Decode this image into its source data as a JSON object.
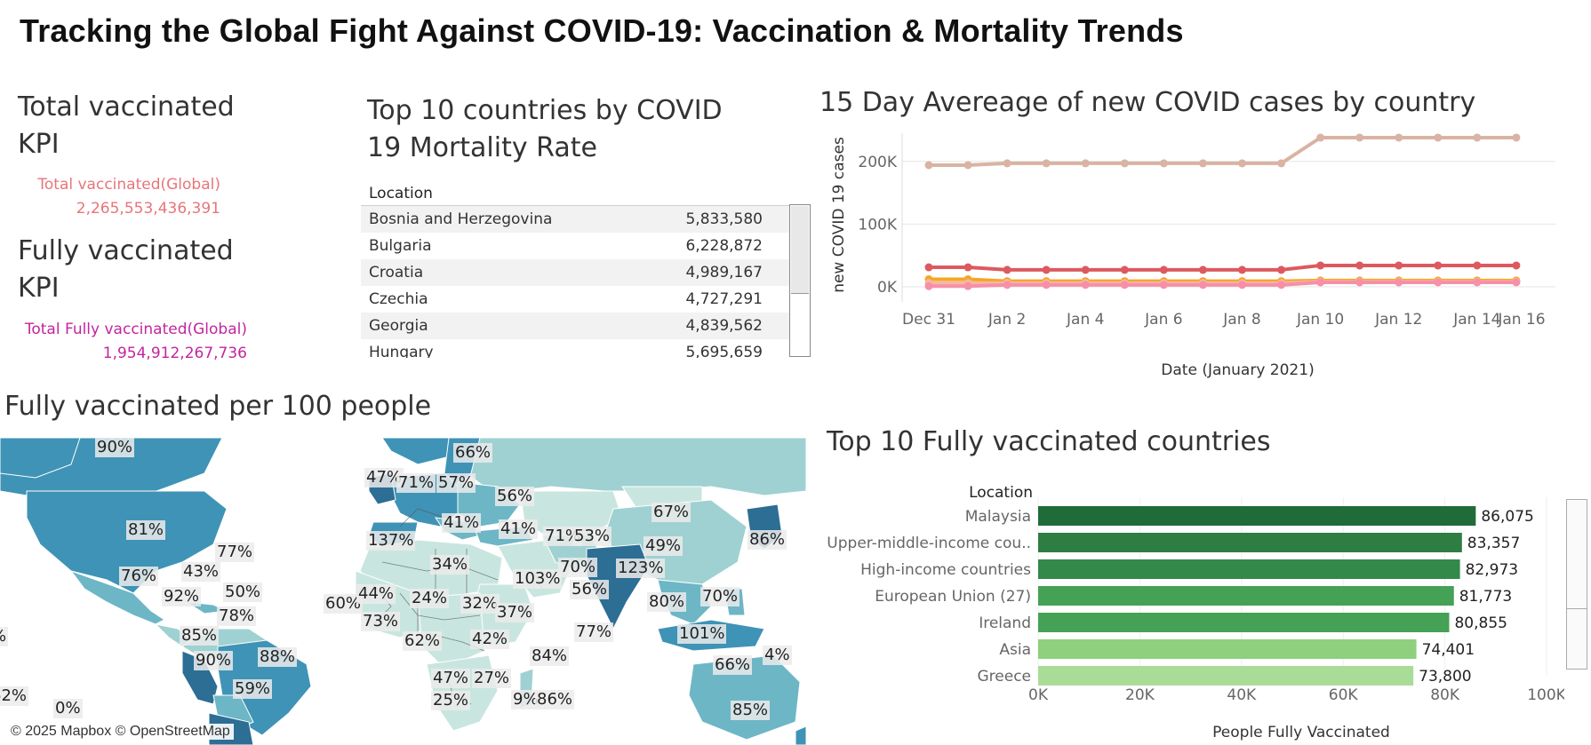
{
  "dashboard": {
    "title": "Tracking the Global Fight Against COVID-19: Vaccination & Mortality Trends"
  },
  "kpi": {
    "total_title": "Total vaccinated KPI",
    "total_label": "Total vaccinated(Global)",
    "total_value": "2,265,553,436,391",
    "total_color": "#e8757a",
    "fully_title": "Fully vaccinated KPI",
    "fully_label": "Total Fully vaccinated(Global)",
    "fully_value": "1,954,912,267,736",
    "fully_color": "#c3259e"
  },
  "mortality_table": {
    "title": "Top 10 countries by COVID 19 Mortality Rate",
    "column_header": "Location",
    "rows": [
      {
        "location": "Bosnia and Herzegovina",
        "value": "5,833,580"
      },
      {
        "location": "Bulgaria",
        "value": "6,228,872"
      },
      {
        "location": "Croatia",
        "value": "4,989,167"
      },
      {
        "location": "Czechia",
        "value": "4,727,291"
      },
      {
        "location": "Georgia",
        "value": "4,839,562"
      },
      {
        "location": "Hungary",
        "value": "5,695,659"
      }
    ]
  },
  "map": {
    "title": "Fully vaccinated per 100 people",
    "attribution": "© 2025 Mapbox © OpenStreetMap",
    "labels": [
      "90%",
      "81%",
      "77%",
      "76%",
      "43%",
      "50%",
      "92%",
      "78%",
      "85%",
      "88%",
      "90%",
      "59%",
      "62%",
      "0%",
      "%",
      "60%",
      "47%",
      "71%",
      "57%",
      "66%",
      "56%",
      "41%",
      "137%",
      "34%",
      "44%",
      "24%",
      "73%",
      "62%",
      "32%",
      "37%",
      "42%",
      "47%",
      "27%",
      "25%",
      "9%",
      "86%",
      "84%",
      "41%",
      "71%",
      "53%",
      "70%",
      "103%",
      "123%",
      "56%",
      "67%",
      "49%",
      "86%",
      "80%",
      "70%",
      "77%",
      "101%",
      "66%",
      "4%",
      "85%",
      "60%"
    ],
    "colors": {
      "darkest": "#2c6e94",
      "dark": "#3f93b6",
      "mid": "#6db6c6",
      "light": "#9fd1d2",
      "lightest": "#c8e6df"
    }
  },
  "chart_data": [
    {
      "type": "line",
      "title": "15 Day Avereage of new COVID cases by country",
      "xlabel": "Date (January 2021)",
      "ylabel": "new COVID 19 cases",
      "x": [
        "Dec 31",
        "Jan 1",
        "Jan 2",
        "Jan 3",
        "Jan 4",
        "Jan 5",
        "Jan 6",
        "Jan 7",
        "Jan 8",
        "Jan 9",
        "Jan 10",
        "Jan 11",
        "Jan 12",
        "Jan 13",
        "Jan 14",
        "Jan 15"
      ],
      "x_tick_labels": [
        "Dec 31",
        "Jan 2",
        "Jan 4",
        "Jan 6",
        "Jan 8",
        "Jan 10",
        "Jan 12",
        "Jan 14",
        "Jan 16"
      ],
      "y_tick_labels": [
        "0K",
        "100K",
        "200K"
      ],
      "ylim": [
        -10000,
        245000
      ],
      "grid": true,
      "series": [
        {
          "color": "#d9b3a3",
          "values": [
            194000,
            194000,
            197000,
            197000,
            197000,
            197000,
            197000,
            197000,
            197000,
            197000,
            238000,
            238000,
            238000,
            238000,
            238000,
            238000
          ]
        },
        {
          "color": "#dc5a5f",
          "values": [
            31000,
            31000,
            27000,
            27000,
            27000,
            27000,
            27000,
            27000,
            27000,
            27000,
            34000,
            34000,
            34000,
            34000,
            34000,
            34000
          ]
        },
        {
          "color": "#f5a623",
          "values": [
            12000,
            12000,
            9000,
            9000,
            9000,
            9000,
            9000,
            9000,
            9000,
            9000,
            10000,
            10000,
            10000,
            10000,
            10000,
            10000
          ]
        },
        {
          "color": "#f4b7a4",
          "values": [
            6000,
            6000,
            6000,
            6000,
            6000,
            6000,
            6000,
            6000,
            6000,
            6000,
            8000,
            8000,
            8000,
            8000,
            8000,
            8000
          ]
        },
        {
          "color": "#f78fa7",
          "values": [
            1000,
            1000,
            3000,
            3000,
            3000,
            3000,
            3000,
            3000,
            3000,
            3000,
            7000,
            7000,
            7000,
            7000,
            7000,
            7000
          ]
        }
      ]
    },
    {
      "type": "bar",
      "orientation": "horizontal",
      "title": "Top 10 Fully vaccinated countries",
      "category_header": "Location",
      "xlabel": "People Fully Vaccinated",
      "x_tick_labels": [
        "0K",
        "20K",
        "40K",
        "60K",
        "80K",
        "100K"
      ],
      "xlim": [
        0,
        100000
      ],
      "categories": [
        "Malaysia",
        "Upper-middle-income cou..",
        "High-income countries",
        "European Union (27)",
        "Ireland",
        "Asia",
        "Greece"
      ],
      "values": [
        86075,
        83357,
        82973,
        81773,
        80855,
        74401,
        73800
      ],
      "value_labels": [
        "86,075",
        "83,357",
        "82,973",
        "81,773",
        "80,855",
        "74,401",
        "73,800"
      ],
      "colors": [
        "#1f6b3a",
        "#2e7d42",
        "#32894a",
        "#45a155",
        "#45a155",
        "#8fd07e",
        "#a9dc97"
      ]
    }
  ]
}
